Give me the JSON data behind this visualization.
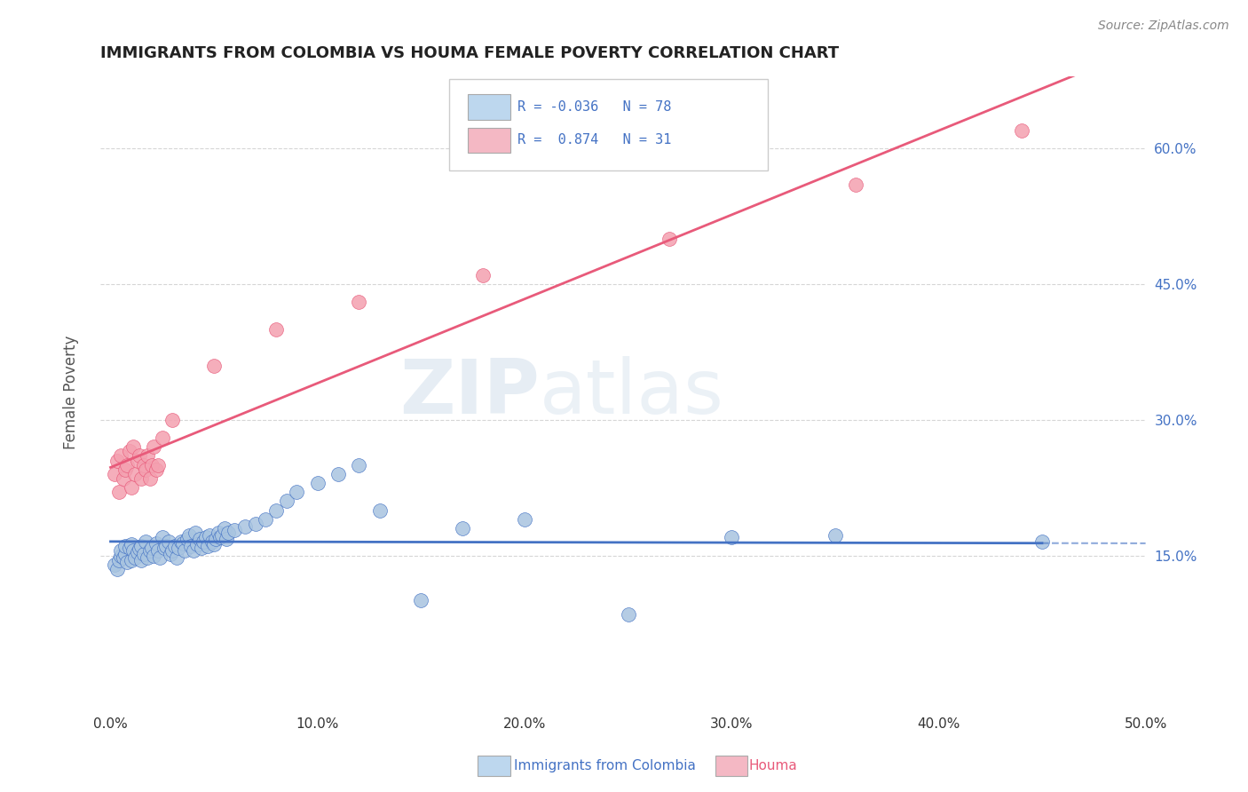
{
  "title": "IMMIGRANTS FROM COLOMBIA VS HOUMA FEMALE POVERTY CORRELATION CHART",
  "source": "Source: ZipAtlas.com",
  "xlabel_legend1": "Immigrants from Colombia",
  "xlabel_legend2": "Houma",
  "ylabel": "Female Poverty",
  "xlim": [
    0.0,
    0.5
  ],
  "ylim": [
    -0.02,
    0.68
  ],
  "yticks_right": [
    0.15,
    0.3,
    0.45,
    0.6
  ],
  "ytick_labels_right": [
    "15.0%",
    "30.0%",
    "45.0%",
    "60.0%"
  ],
  "xticks": [
    0.0,
    0.1,
    0.2,
    0.3,
    0.4,
    0.5
  ],
  "xtick_labels": [
    "0.0%",
    "10.0%",
    "20.0%",
    "30.0%",
    "40.0%",
    "50.0%"
  ],
  "R_blue": -0.036,
  "N_blue": 78,
  "R_pink": 0.874,
  "N_pink": 31,
  "color_blue": "#a8c4e0",
  "color_pink": "#f4a0b0",
  "line_blue": "#4472c4",
  "line_pink": "#e85a7a",
  "legend_box_blue": "#bdd7ee",
  "legend_box_pink": "#f4b8c4",
  "watermark_zip": "ZIP",
  "watermark_atlas": "atlas",
  "blue_x": [
    0.002,
    0.003,
    0.004,
    0.005,
    0.005,
    0.006,
    0.007,
    0.007,
    0.008,
    0.009,
    0.01,
    0.01,
    0.011,
    0.012,
    0.013,
    0.014,
    0.015,
    0.015,
    0.016,
    0.017,
    0.018,
    0.019,
    0.02,
    0.021,
    0.022,
    0.023,
    0.024,
    0.025,
    0.026,
    0.027,
    0.028,
    0.029,
    0.03,
    0.031,
    0.032,
    0.033,
    0.034,
    0.035,
    0.036,
    0.037,
    0.038,
    0.039,
    0.04,
    0.041,
    0.042,
    0.043,
    0.044,
    0.045,
    0.046,
    0.047,
    0.048,
    0.049,
    0.05,
    0.051,
    0.052,
    0.053,
    0.054,
    0.055,
    0.056,
    0.057,
    0.06,
    0.065,
    0.07,
    0.075,
    0.08,
    0.085,
    0.09,
    0.1,
    0.11,
    0.12,
    0.13,
    0.15,
    0.17,
    0.2,
    0.25,
    0.3,
    0.35,
    0.45
  ],
  "blue_y": [
    0.14,
    0.135,
    0.145,
    0.15,
    0.155,
    0.148,
    0.152,
    0.16,
    0.143,
    0.158,
    0.162,
    0.145,
    0.155,
    0.148,
    0.153,
    0.157,
    0.16,
    0.145,
    0.152,
    0.165,
    0.148,
    0.155,
    0.158,
    0.15,
    0.163,
    0.155,
    0.148,
    0.17,
    0.158,
    0.16,
    0.165,
    0.152,
    0.155,
    0.16,
    0.148,
    0.158,
    0.165,
    0.163,
    0.155,
    0.168,
    0.172,
    0.16,
    0.155,
    0.175,
    0.162,
    0.168,
    0.158,
    0.165,
    0.17,
    0.16,
    0.172,
    0.165,
    0.162,
    0.168,
    0.175,
    0.17,
    0.172,
    0.18,
    0.168,
    0.175,
    0.178,
    0.182,
    0.185,
    0.19,
    0.2,
    0.21,
    0.22,
    0.23,
    0.24,
    0.25,
    0.2,
    0.1,
    0.18,
    0.19,
    0.085,
    0.17,
    0.172,
    0.165
  ],
  "pink_x": [
    0.002,
    0.003,
    0.004,
    0.005,
    0.006,
    0.007,
    0.008,
    0.009,
    0.01,
    0.011,
    0.012,
    0.013,
    0.014,
    0.015,
    0.016,
    0.017,
    0.018,
    0.019,
    0.02,
    0.021,
    0.022,
    0.023,
    0.025,
    0.03,
    0.05,
    0.08,
    0.12,
    0.18,
    0.27,
    0.36,
    0.44
  ],
  "pink_y": [
    0.24,
    0.255,
    0.22,
    0.26,
    0.235,
    0.245,
    0.25,
    0.265,
    0.225,
    0.27,
    0.24,
    0.255,
    0.26,
    0.235,
    0.25,
    0.245,
    0.26,
    0.235,
    0.25,
    0.27,
    0.245,
    0.25,
    0.28,
    0.3,
    0.36,
    0.4,
    0.43,
    0.46,
    0.5,
    0.56,
    0.62
  ]
}
